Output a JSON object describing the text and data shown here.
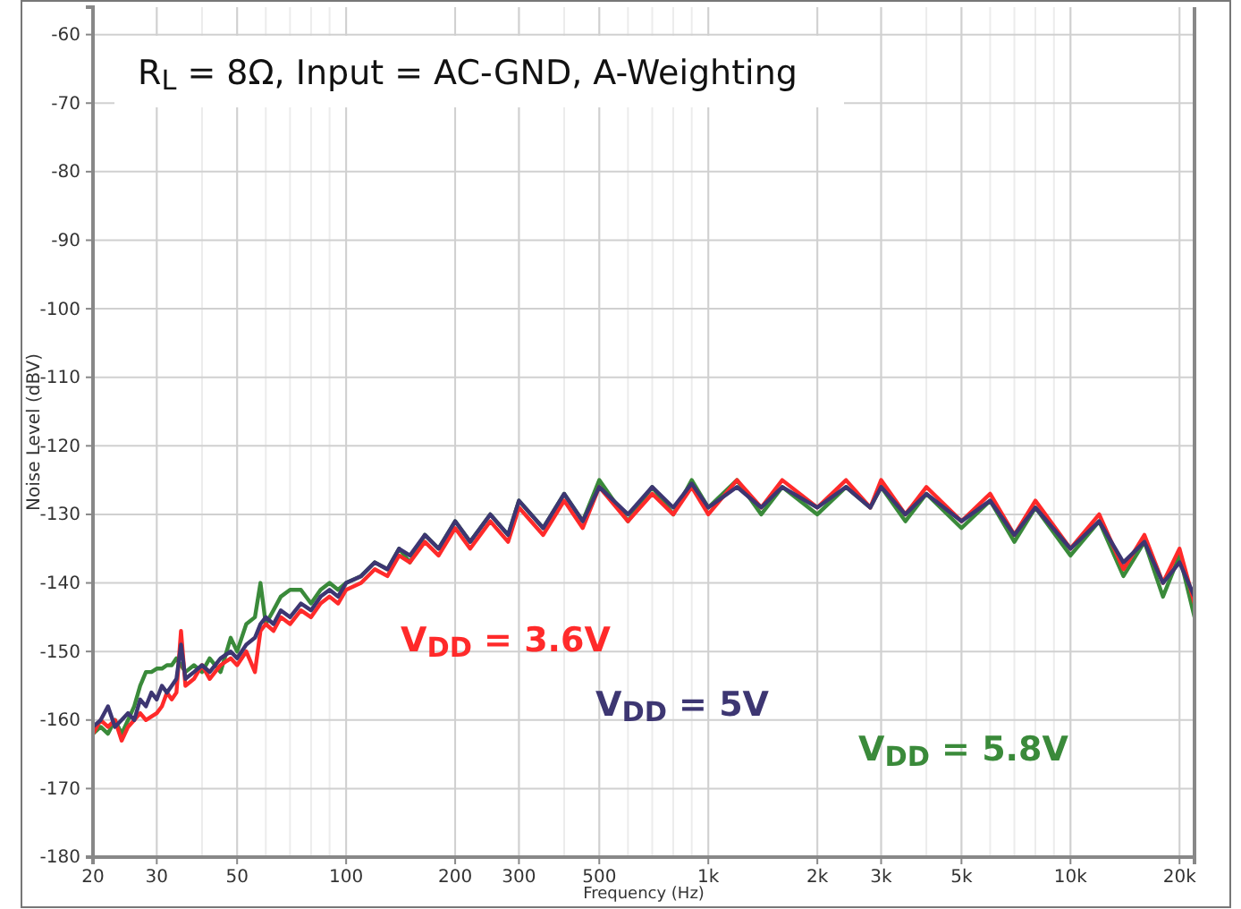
{
  "chart_data": {
    "type": "line",
    "title": "R$_{L}$ = 8Ω, Input = AC-GND, A-Weighting",
    "xlabel": "Frequency (Hz)",
    "ylabel": "Noise Level (dBV)",
    "log": "x",
    "grid": true,
    "legend": false,
    "marker": "none",
    "line_style": "solid",
    "xlim": [
      20,
      22000
    ],
    "ylim": [
      -180,
      -56
    ],
    "xticks": [
      20,
      30,
      50,
      100,
      200,
      300,
      500,
      {
        "value": 1000,
        "label": "1k"
      },
      {
        "value": 2000,
        "label": "2k"
      },
      {
        "value": 3000,
        "label": "3k"
      },
      {
        "value": 5000,
        "label": "5k"
      },
      {
        "value": 10000,
        "label": "10k"
      },
      {
        "value": 20000,
        "label": "20k"
      }
    ],
    "yticks": [
      -60,
      -70,
      -80,
      -90,
      -100,
      -110,
      -120,
      -130,
      -140,
      -150,
      -160,
      -170,
      -180
    ],
    "x": [
      20,
      21,
      22,
      23,
      24,
      25,
      26,
      27,
      28,
      29,
      30,
      31,
      32,
      33,
      34,
      35,
      36,
      38,
      40,
      42,
      45,
      48,
      50,
      53,
      56,
      58,
      60,
      63,
      66,
      70,
      75,
      80,
      85,
      90,
      95,
      100,
      110,
      120,
      130,
      140,
      150,
      165,
      180,
      200,
      220,
      250,
      280,
      300,
      350,
      400,
      450,
      500,
      600,
      700,
      800,
      900,
      1000,
      1200,
      1400,
      1600,
      2000,
      2400,
      2800,
      3000,
      3500,
      4000,
      5000,
      6000,
      7000,
      8000,
      10000,
      12000,
      14000,
      16000,
      18000,
      20000,
      22000
    ],
    "series": [
      {
        "name": "V$_{DD}$ = 5.8V",
        "color": "#3a8a3a",
        "values": [
          -162,
          -161,
          -162,
          -160,
          -162,
          -160,
          -158,
          -155,
          -153,
          -153,
          -152.5,
          -152.5,
          -152,
          -152,
          -151,
          -152,
          -153,
          -152,
          -153,
          -151,
          -153,
          -148,
          -150,
          -146,
          -145,
          -140,
          -146,
          -144,
          -142,
          -141,
          -141,
          -143,
          -141,
          -140,
          -141,
          -140,
          -139,
          -137,
          -138,
          -135,
          -137,
          -133,
          -135,
          -131,
          -134,
          -130,
          -133,
          -128,
          -132,
          -127,
          -131,
          -125,
          -131,
          -126,
          -130,
          -125,
          -129,
          -125,
          -130,
          -126,
          -130,
          -126,
          -129,
          -126,
          -131,
          -127,
          -132,
          -128,
          -134,
          -129,
          -136,
          -131,
          -139,
          -134,
          -142,
          -136,
          -145
        ]
      },
      {
        "name": "V$_{DD}$ = 3.6V",
        "color": "#ff2a2a",
        "values": [
          -162,
          -160,
          -161,
          -160,
          -163,
          -161,
          -160,
          -159,
          -160,
          -159.5,
          -159,
          -158,
          -156,
          -157,
          -156,
          -147,
          -155,
          -154,
          -152,
          -154,
          -152,
          -151,
          -152,
          -150,
          -153,
          -147,
          -146,
          -147,
          -145,
          -146,
          -144,
          -145,
          -143,
          -142,
          -143,
          -141,
          -140,
          -138,
          -139,
          -136,
          -137,
          -134,
          -136,
          -132,
          -135,
          -131,
          -134,
          -129,
          -133,
          -128,
          -132,
          -126,
          -131,
          -127,
          -130,
          -126,
          -130,
          -125,
          -129,
          -125,
          -129,
          -125,
          -129,
          -125,
          -130,
          -126,
          -131,
          -127,
          -133,
          -128,
          -135,
          -130,
          -138,
          -133,
          -140,
          -135,
          -143
        ]
      },
      {
        "name": "V$_{DD}$ = 5V",
        "color": "#3d3672",
        "values": [
          -161,
          -160,
          -158,
          -161,
          -160,
          -159,
          -160,
          -157,
          -158,
          -156,
          -157,
          -155,
          -156,
          -155,
          -154,
          -149,
          -154,
          -153,
          -152,
          -153,
          -151,
          -150,
          -151,
          -149,
          -148,
          -146,
          -145,
          -146,
          -144,
          -145,
          -143,
          -144,
          -142,
          -141,
          -142,
          -140,
          -139,
          -137,
          -138,
          -135,
          -136,
          -133,
          -135,
          -131,
          -134,
          -130,
          -133,
          -128,
          -132,
          -127,
          -131,
          -126,
          -130,
          -126,
          -129,
          -125.5,
          -129,
          -126,
          -129,
          -126,
          -129,
          -126,
          -129,
          -126,
          -130,
          -127,
          -131,
          -128,
          -133,
          -129,
          -135,
          -131,
          -137,
          -134,
          -140,
          -137,
          -142
        ]
      }
    ]
  }
}
